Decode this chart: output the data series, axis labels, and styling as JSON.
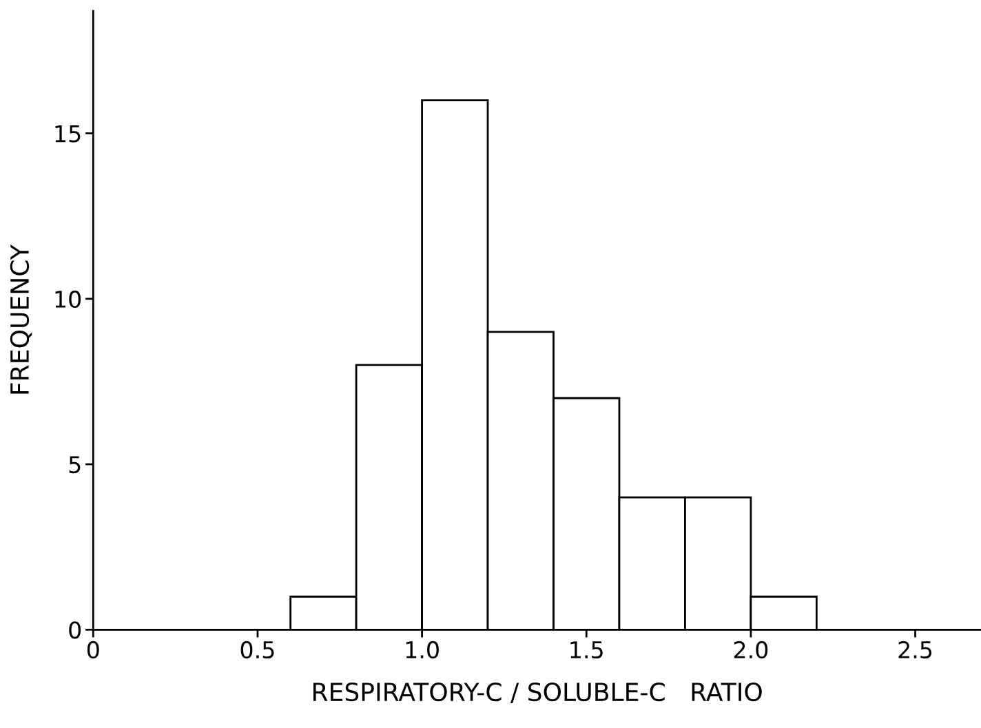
{
  "chart_data": {
    "type": "histogram",
    "xlabel": "RESPIRATORY-C / SOLUBLE-C   RATIO",
    "ylabel": "FREQUENCY",
    "bins": [
      0.6,
      0.8,
      1.0,
      1.2,
      1.4,
      1.6,
      1.8,
      2.0,
      2.2
    ],
    "values": [
      1,
      8,
      16,
      9,
      7,
      4,
      4,
      1
    ],
    "color": "#ffffff",
    "xlim": [
      0,
      2.7
    ],
    "ylim": [
      0,
      18.7
    ],
    "xticks": [
      {
        "value": 0,
        "label": "0"
      },
      {
        "value": 0.5,
        "label": "0.5"
      },
      {
        "value": 1.0,
        "label": "1.0"
      },
      {
        "value": 1.5,
        "label": "1.5"
      },
      {
        "value": 2.0,
        "label": "2.0"
      },
      {
        "value": 2.5,
        "label": "2.5"
      }
    ],
    "yticks": [
      0,
      5,
      10,
      15
    ],
    "grid": false
  }
}
